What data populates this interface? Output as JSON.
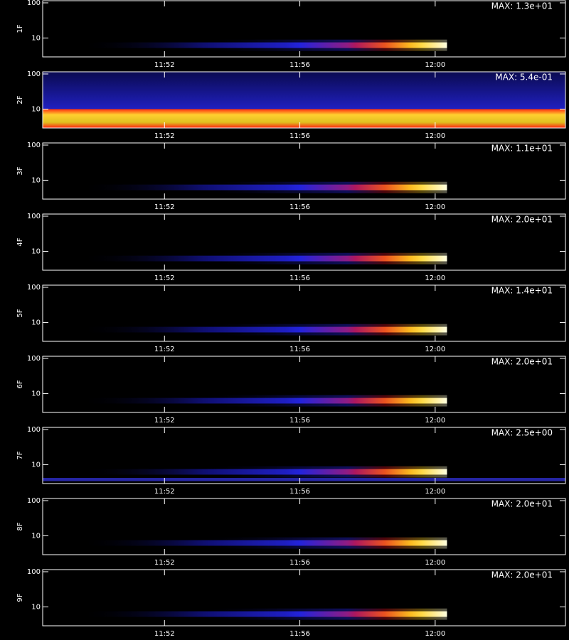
{
  "chart_data": [
    {
      "type": "spectrogram",
      "ylabel": "1F",
      "annotation": "MAX: 1.3e+01",
      "log_y": true,
      "ylim": [
        2.9,
        115
      ],
      "yticks": [
        10,
        100
      ],
      "xlim": [
        708.4,
        723.85
      ],
      "xticks": [
        {
          "value": 712,
          "label": "11:52"
        },
        {
          "value": 716,
          "label": "11:56"
        },
        {
          "value": 720,
          "label": "12:00"
        }
      ]
    },
    {
      "type": "spectrogram",
      "ylabel": "2F",
      "annotation": "MAX: 5.4e-01",
      "log_y": true,
      "ylim": [
        2.9,
        115
      ],
      "yticks": [
        10,
        100
      ],
      "xlim": [
        708.4,
        723.85
      ],
      "xticks": [
        {
          "value": 712,
          "label": "11:52"
        },
        {
          "value": 716,
          "label": "11:56"
        },
        {
          "value": 720,
          "label": "12:00"
        }
      ]
    },
    {
      "type": "spectrogram",
      "ylabel": "3F",
      "annotation": "MAX: 1.1e+01",
      "log_y": true,
      "ylim": [
        2.9,
        115
      ],
      "yticks": [
        10,
        100
      ],
      "xlim": [
        708.4,
        723.85
      ],
      "xticks": [
        {
          "value": 712,
          "label": "11:52"
        },
        {
          "value": 716,
          "label": "11:56"
        },
        {
          "value": 720,
          "label": "12:00"
        }
      ]
    },
    {
      "type": "spectrogram",
      "ylabel": "4F",
      "annotation": "MAX: 2.0e+01",
      "log_y": true,
      "ylim": [
        2.9,
        115
      ],
      "yticks": [
        10,
        100
      ],
      "xlim": [
        708.4,
        723.85
      ],
      "xticks": [
        {
          "value": 712,
          "label": "11:52"
        },
        {
          "value": 716,
          "label": "11:56"
        },
        {
          "value": 720,
          "label": "12:00"
        }
      ]
    },
    {
      "type": "spectrogram",
      "ylabel": "5F",
      "annotation": "MAX: 1.4e+01",
      "log_y": true,
      "ylim": [
        2.9,
        115
      ],
      "yticks": [
        10,
        100
      ],
      "xlim": [
        708.4,
        723.85
      ],
      "xticks": [
        {
          "value": 712,
          "label": "11:52"
        },
        {
          "value": 716,
          "label": "11:56"
        },
        {
          "value": 720,
          "label": "12:00"
        }
      ]
    },
    {
      "type": "spectrogram",
      "ylabel": "6F",
      "annotation": "MAX: 2.0e+01",
      "log_y": true,
      "ylim": [
        2.9,
        115
      ],
      "yticks": [
        10,
        100
      ],
      "xlim": [
        708.4,
        723.85
      ],
      "xticks": [
        {
          "value": 712,
          "label": "11:52"
        },
        {
          "value": 716,
          "label": "11:56"
        },
        {
          "value": 720,
          "label": "12:00"
        }
      ]
    },
    {
      "type": "spectrogram",
      "ylabel": "7F",
      "annotation": "MAX: 2.5e+00",
      "log_y": true,
      "ylim": [
        2.9,
        115
      ],
      "yticks": [
        10,
        100
      ],
      "xlim": [
        708.4,
        723.85
      ],
      "xticks": [
        {
          "value": 712,
          "label": "11:52"
        },
        {
          "value": 716,
          "label": "11:56"
        },
        {
          "value": 720,
          "label": "12:00"
        }
      ]
    },
    {
      "type": "spectrogram",
      "ylabel": "8F",
      "annotation": "MAX: 2.0e+01",
      "log_y": true,
      "ylim": [
        2.9,
        115
      ],
      "yticks": [
        10,
        100
      ],
      "xlim": [
        708.4,
        723.85
      ],
      "xticks": [
        {
          "value": 712,
          "label": "11:52"
        },
        {
          "value": 716,
          "label": "11:56"
        },
        {
          "value": 720,
          "label": "12:00"
        }
      ]
    },
    {
      "type": "spectrogram",
      "ylabel": "9F",
      "annotation": "MAX: 2.0e+01",
      "log_y": true,
      "ylim": [
        2.9,
        115
      ],
      "yticks": [
        10,
        100
      ],
      "xlim": [
        708.4,
        723.85
      ],
      "xticks": [
        {
          "value": 712,
          "label": "11:52"
        },
        {
          "value": 716,
          "label": "11:56"
        },
        {
          "value": 720,
          "label": "12:00"
        }
      ]
    }
  ]
}
